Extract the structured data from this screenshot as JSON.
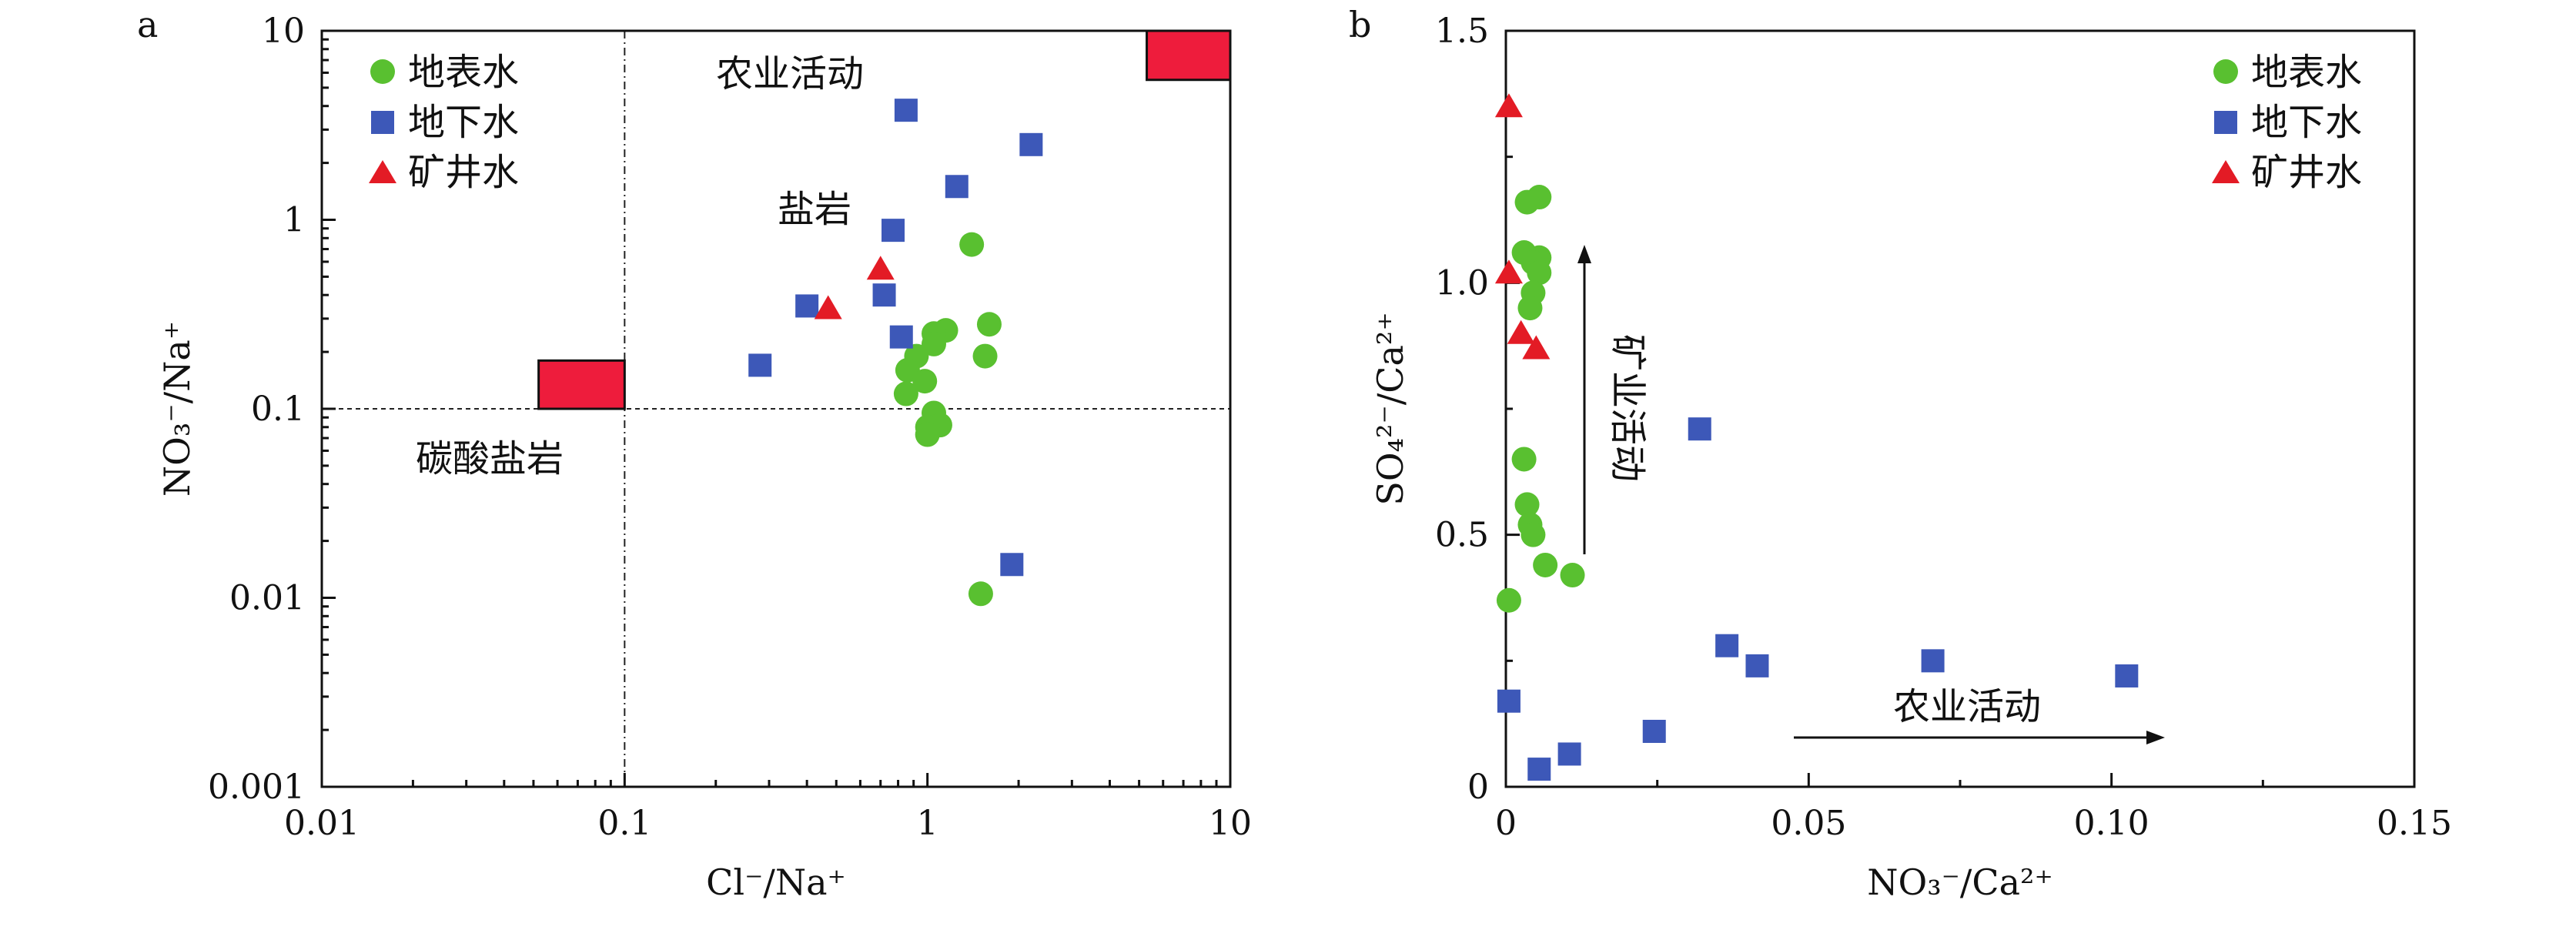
{
  "chart_data": [
    {
      "type": "scatter",
      "panel_label": "a",
      "xlabel": "Cl⁻/Na⁺",
      "ylabel": "NO₃⁻/Na⁺",
      "xscale": "log",
      "yscale": "log",
      "xlim": [
        0.01,
        10
      ],
      "ylim": [
        0.001,
        10
      ],
      "xticks": [
        "0.01",
        "0.1",
        "1",
        "10"
      ],
      "yticks": [
        "0.001",
        "0.01",
        "0.1",
        "1",
        "10"
      ],
      "grid": false,
      "legend_position": "top-left",
      "reference_lines": {
        "x": 0.1,
        "y": 0.1
      },
      "annotations": [
        "农业活动",
        "盐岩",
        "碳酸盐岩"
      ],
      "end_member_boxes": [
        {
          "label": "碳酸盐岩",
          "x": [
            0.052,
            0.1
          ],
          "y": [
            0.1,
            0.18
          ]
        },
        {
          "label": "农业活动",
          "x": [
            5.3,
            10
          ],
          "y": [
            5.5,
            10
          ]
        }
      ],
      "series": [
        {
          "name": "地表水",
          "marker": "circle",
          "color": "#59c030",
          "points": [
            [
              1.4,
              0.74
            ],
            [
              1.6,
              0.28
            ],
            [
              1.15,
              0.26
            ],
            [
              1.05,
              0.25
            ],
            [
              1.05,
              0.22
            ],
            [
              1.55,
              0.19
            ],
            [
              0.92,
              0.19
            ],
            [
              0.86,
              0.16
            ],
            [
              0.98,
              0.14
            ],
            [
              0.85,
              0.12
            ],
            [
              1.05,
              0.095
            ],
            [
              1.1,
              0.082
            ],
            [
              1.0,
              0.08
            ],
            [
              1.0,
              0.073
            ],
            [
              1.5,
              0.0105
            ]
          ]
        },
        {
          "name": "地下水",
          "marker": "square",
          "color": "#3d58b8",
          "points": [
            [
              0.85,
              3.8
            ],
            [
              2.2,
              2.5
            ],
            [
              1.25,
              1.5
            ],
            [
              0.77,
              0.88
            ],
            [
              0.72,
              0.4
            ],
            [
              0.4,
              0.35
            ],
            [
              0.82,
              0.24
            ],
            [
              0.28,
              0.17
            ],
            [
              1.9,
              0.015
            ]
          ]
        },
        {
          "name": "矿井水",
          "marker": "triangle",
          "color": "#e31b25",
          "points": [
            [
              0.7,
              0.55
            ],
            [
              0.47,
              0.34
            ]
          ]
        }
      ]
    },
    {
      "type": "scatter",
      "panel_label": "b",
      "xlabel": "NO₃⁻/Ca²⁺",
      "ylabel": "SO₄²⁻/Ca²⁺",
      "xlim": [
        0,
        0.15
      ],
      "ylim": [
        0,
        1.5
      ],
      "xticks": [
        "0",
        "0.05",
        "0.10",
        "0.15"
      ],
      "yticks": [
        "0",
        "0.5",
        "1.0",
        "1.5"
      ],
      "grid": false,
      "legend_position": "top-right",
      "annotations": [
        "矿业活动",
        "农业活动"
      ],
      "series": [
        {
          "name": "地表水",
          "marker": "circle",
          "color": "#59c030",
          "points": [
            [
              0.0055,
              1.17
            ],
            [
              0.0035,
              1.16
            ],
            [
              0.003,
              1.06
            ],
            [
              0.0055,
              1.05
            ],
            [
              0.0045,
              1.04
            ],
            [
              0.0055,
              1.02
            ],
            [
              0.0045,
              0.98
            ],
            [
              0.004,
              0.95
            ],
            [
              0.003,
              0.65
            ],
            [
              0.0035,
              0.56
            ],
            [
              0.004,
              0.52
            ],
            [
              0.0045,
              0.5
            ],
            [
              0.0065,
              0.44
            ],
            [
              0.011,
              0.42
            ],
            [
              0.0005,
              0.37
            ]
          ]
        },
        {
          "name": "地下水",
          "marker": "square",
          "color": "#3d58b8",
          "points": [
            [
              0.032,
              0.71
            ],
            [
              0.0365,
              0.28
            ],
            [
              0.0415,
              0.24
            ],
            [
              0.0705,
              0.25
            ],
            [
              0.1025,
              0.22
            ],
            [
              0.0005,
              0.17
            ],
            [
              0.0245,
              0.11
            ],
            [
              0.0105,
              0.065
            ],
            [
              0.0055,
              0.035
            ]
          ]
        },
        {
          "name": "矿井水",
          "marker": "triangle",
          "color": "#e31b25",
          "points": [
            [
              0.0005,
              1.35
            ],
            [
              0.0005,
              1.02
            ],
            [
              0.0025,
              0.9
            ],
            [
              0.005,
              0.87
            ]
          ]
        }
      ]
    }
  ]
}
